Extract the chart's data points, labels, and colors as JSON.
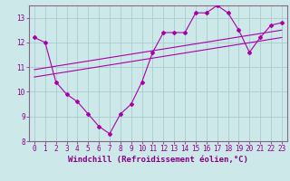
{
  "bg_color": "#cce8e8",
  "line_color": "#aa00aa",
  "grid_color": "#aacccc",
  "xlabel": "Windchill (Refroidissement éolien,°C)",
  "xlim": [
    -0.5,
    23.5
  ],
  "ylim": [
    8,
    13.5
  ],
  "yticks": [
    8,
    9,
    10,
    11,
    12,
    13
  ],
  "xticks": [
    0,
    1,
    2,
    3,
    4,
    5,
    6,
    7,
    8,
    9,
    10,
    11,
    12,
    13,
    14,
    15,
    16,
    17,
    18,
    19,
    20,
    21,
    22,
    23
  ],
  "data_x": [
    0,
    1,
    2,
    3,
    4,
    5,
    6,
    7,
    8,
    9,
    10,
    11,
    12,
    13,
    14,
    15,
    16,
    17,
    18,
    19,
    20,
    21,
    22,
    23
  ],
  "data_y": [
    12.2,
    12.0,
    10.4,
    9.9,
    9.6,
    9.1,
    8.6,
    8.3,
    9.1,
    9.5,
    10.4,
    11.6,
    12.4,
    12.4,
    12.4,
    13.2,
    13.2,
    13.5,
    13.2,
    12.5,
    11.6,
    12.2,
    12.7,
    12.8
  ],
  "trend1_x": [
    0,
    23
  ],
  "trend1_y": [
    10.6,
    12.2
  ],
  "trend2_x": [
    0,
    23
  ],
  "trend2_y": [
    10.9,
    12.5
  ],
  "marker": "D",
  "markersize": 2.0,
  "linewidth": 0.8,
  "xlabel_fontsize": 6.5,
  "tick_fontsize": 5.5,
  "tick_color": "#880088",
  "spine_color": "#886688"
}
